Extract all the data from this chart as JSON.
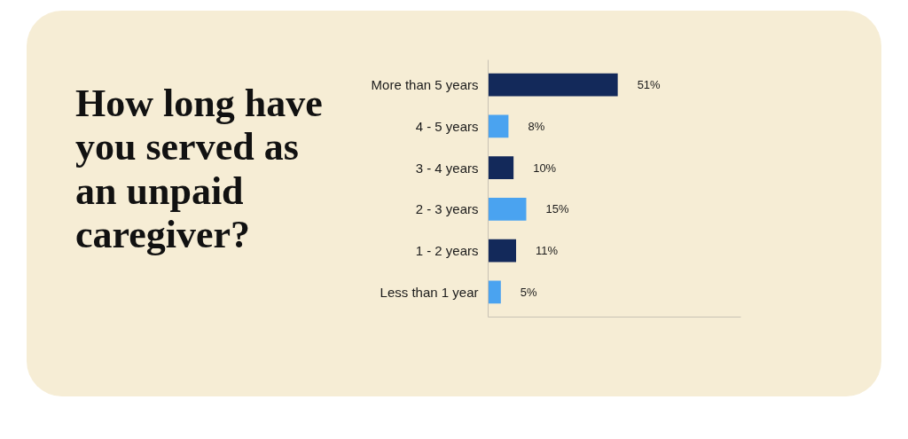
{
  "chart_data": {
    "type": "bar",
    "orientation": "horizontal",
    "title": "How long have you served as an unpaid caregiver?",
    "categories": [
      "More than 5 years",
      "4 - 5 years",
      "3 - 4 years",
      "2 - 3 years",
      "1 - 2 years",
      "Less than 1 year"
    ],
    "values": [
      51,
      8,
      10,
      15,
      11,
      5
    ],
    "colors": [
      "#13295a",
      "#4aa3f0",
      "#13295a",
      "#4aa3f0",
      "#13295a",
      "#4aa3f0"
    ],
    "value_labels": [
      "51%",
      "8%",
      "10%",
      "15%",
      "11%",
      "5%"
    ]
  }
}
